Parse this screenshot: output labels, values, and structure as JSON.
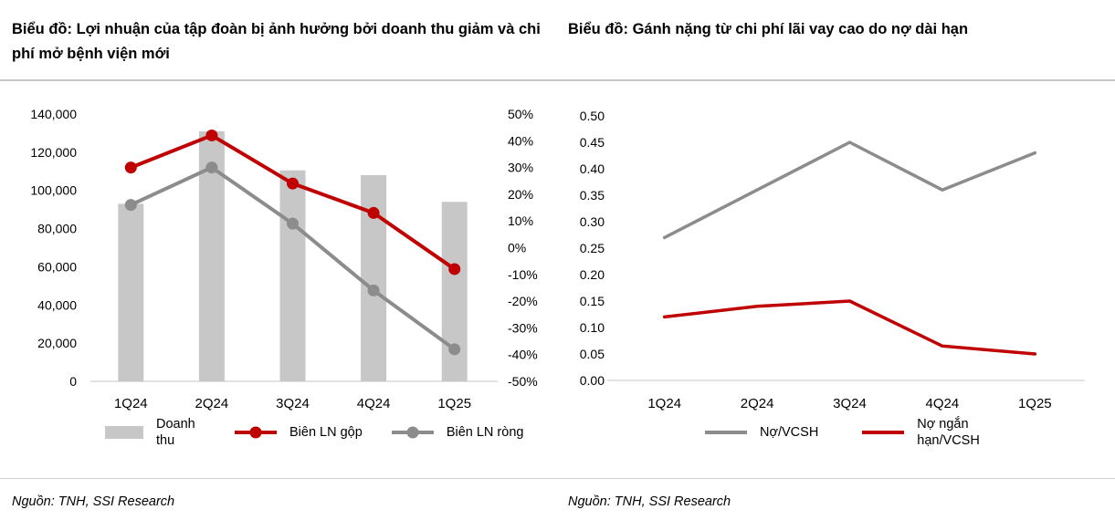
{
  "colors": {
    "red": "#C00000",
    "gray_line": "#8C8C8C",
    "bar_fill": "#C7C7C7",
    "axis_line": "#D9D9D9"
  },
  "chart_data": [
    {
      "type": "bar+line combo",
      "title": "Biểu đồ: Lợi nhuận của tập đoàn bị ảnh hưởng bởi doanh thu giảm và chi phí mở bệnh viện mới",
      "categories": [
        "1Q24",
        "2Q24",
        "3Q24",
        "4Q24",
        "1Q25"
      ],
      "bar_series": {
        "name": "Doanh thu",
        "axis": "left",
        "color": "#C7C7C7",
        "values": [
          93000,
          131000,
          110500,
          108000,
          94000
        ]
      },
      "line_series": [
        {
          "name": "Biên LN gộp",
          "axis": "right",
          "color": "#C00000",
          "marker": "circle",
          "values_pct": [
            30,
            42,
            24,
            13,
            -8
          ]
        },
        {
          "name": "Biên LN ròng",
          "axis": "right",
          "color": "#8C8C8C",
          "marker": "circle",
          "values_pct": [
            16,
            30,
            9,
            -16,
            -38
          ]
        }
      ],
      "left_axis": {
        "min": 0,
        "max": 140000,
        "tick_step": 20000,
        "tick_labels": [
          "140,000",
          "120,000",
          "100,000",
          "80,000",
          "60,000",
          "40,000",
          "20,000",
          "0"
        ]
      },
      "right_axis": {
        "min": -50,
        "max": 50,
        "tick_step": 10,
        "unit": "%",
        "tick_labels": [
          "50%",
          "40%",
          "30%",
          "20%",
          "10%",
          "0%",
          "-10%",
          "-20%",
          "-30%",
          "-40%",
          "-50%"
        ]
      },
      "grid": false,
      "legend_position": "bottom",
      "source": "Nguồn: TNH, SSI Research"
    },
    {
      "type": "line",
      "title": "Biểu đồ: Gánh nặng từ chi phí lãi vay cao do nợ dài hạn",
      "categories": [
        "1Q24",
        "2Q24",
        "3Q24",
        "4Q24",
        "1Q25"
      ],
      "series": [
        {
          "name": "Nợ/VCSH",
          "color": "#8C8C8C",
          "values": [
            0.27,
            0.36,
            0.45,
            0.36,
            0.43
          ]
        },
        {
          "name": "Nợ ngắn hạn/VCSH",
          "color": "#C00000",
          "values": [
            0.12,
            0.14,
            0.15,
            0.065,
            0.05
          ]
        }
      ],
      "y_axis": {
        "min": 0.0,
        "max": 0.5,
        "tick_step": 0.05,
        "tick_labels": [
          "0.50",
          "0.45",
          "0.40",
          "0.35",
          "0.30",
          "0.25",
          "0.20",
          "0.15",
          "0.10",
          "0.05",
          "0.00"
        ]
      },
      "grid": false,
      "legend_position": "bottom",
      "source": "Nguồn: TNH, SSI Research"
    }
  ]
}
